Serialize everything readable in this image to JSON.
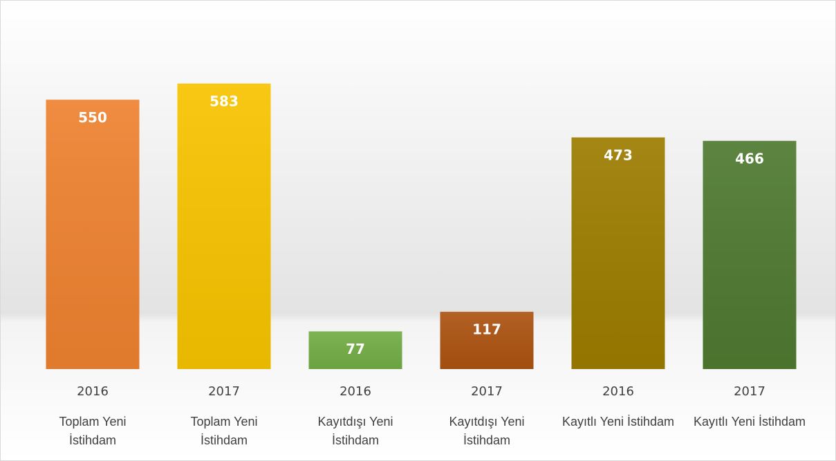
{
  "chart_data": {
    "type": "bar",
    "categories": [
      "2016",
      "2017",
      "2016",
      "2017",
      "2016",
      "2017"
    ],
    "groups": [
      "Toplam Yeni İstihdam",
      "Toplam Yeni İstihdam",
      "Kayıtdışı Yeni İstihdam",
      "Kayıtdışı Yeni İstihdam",
      "Kayıtlı Yeni İstihdam",
      "Kayıtlı Yeni İstihdam"
    ],
    "values": [
      550,
      583,
      77,
      117,
      473,
      466
    ],
    "colors": [
      "#ee8230",
      "#f7c300",
      "#73ad45",
      "#ad5312",
      "#9c7c00",
      "#4f7a31"
    ],
    "ylim": [
      0,
      700
    ]
  }
}
